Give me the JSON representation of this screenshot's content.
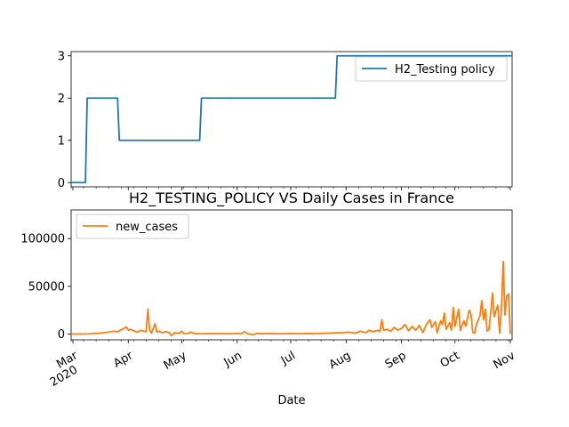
{
  "chart_data": [
    {
      "type": "line",
      "title": "",
      "xlabel": "",
      "ylabel": "",
      "x_range": [
        "2020-02-29",
        "2020-11-02"
      ],
      "ylim": [
        -0.1,
        3.1
      ],
      "yticks": [
        "0",
        "1",
        "2",
        "3"
      ],
      "legend_position": "top-right",
      "grid": false,
      "series": [
        {
          "name": "H2_Testing policy",
          "color": "#1f77b4",
          "points": [
            [
              "2020-02-29",
              0
            ],
            [
              "2020-03-08",
              0
            ],
            [
              "2020-03-09",
              2
            ],
            [
              "2020-03-26",
              2
            ],
            [
              "2020-03-27",
              1
            ],
            [
              "2020-05-11",
              1
            ],
            [
              "2020-05-12",
              2
            ],
            [
              "2020-07-26",
              2
            ],
            [
              "2020-07-27",
              3
            ],
            [
              "2020-11-02",
              3
            ]
          ]
        }
      ]
    },
    {
      "type": "line",
      "title": "H2_TESTING_POLICY VS Daily Cases in France",
      "xlabel": "Date",
      "ylabel": "",
      "x_range": [
        "2020-02-29",
        "2020-11-02"
      ],
      "ylim": [
        -6000,
        130000
      ],
      "yticks": [
        "0",
        "50000",
        "100000"
      ],
      "xticks": [
        {
          "date": "2020-03-01",
          "label": "Mar",
          "sub": "2020"
        },
        {
          "date": "2020-04-01",
          "label": "Apr",
          "sub": ""
        },
        {
          "date": "2020-05-01",
          "label": "May",
          "sub": ""
        },
        {
          "date": "2020-06-01",
          "label": "Jun",
          "sub": ""
        },
        {
          "date": "2020-07-01",
          "label": "Jul",
          "sub": ""
        },
        {
          "date": "2020-08-01",
          "label": "Aug",
          "sub": ""
        },
        {
          "date": "2020-09-01",
          "label": "Sep",
          "sub": ""
        },
        {
          "date": "2020-10-01",
          "label": "Oct",
          "sub": ""
        },
        {
          "date": "2020-11-01",
          "label": "Nov",
          "sub": ""
        }
      ],
      "legend_position": "top-left",
      "grid": false,
      "series": [
        {
          "name": "new_cases",
          "color": "#ff7f0e",
          "points": [
            [
              "2020-02-29",
              0
            ],
            [
              "2020-03-10",
              300
            ],
            [
              "2020-03-15",
              900
            ],
            [
              "2020-03-20",
              1800
            ],
            [
              "2020-03-24",
              3000
            ],
            [
              "2020-03-26",
              2500
            ],
            [
              "2020-03-28",
              4500
            ],
            [
              "2020-03-31",
              7500
            ],
            [
              "2020-04-01",
              4000
            ],
            [
              "2020-04-02",
              5000
            ],
            [
              "2020-04-04",
              3500
            ],
            [
              "2020-04-06",
              2000
            ],
            [
              "2020-04-08",
              4000
            ],
            [
              "2020-04-10",
              3000
            ],
            [
              "2020-04-11",
              2500
            ],
            [
              "2020-04-12",
              26000
            ],
            [
              "2020-04-13",
              4000
            ],
            [
              "2020-04-14",
              1000
            ],
            [
              "2020-04-15",
              6000
            ],
            [
              "2020-04-16",
              11000
            ],
            [
              "2020-04-17",
              2000
            ],
            [
              "2020-04-18",
              3000
            ],
            [
              "2020-04-20",
              1500
            ],
            [
              "2020-04-22",
              2500
            ],
            [
              "2020-04-24",
              1500
            ],
            [
              "2020-04-25",
              -1500
            ],
            [
              "2020-04-27",
              1500
            ],
            [
              "2020-04-29",
              500
            ],
            [
              "2020-05-01",
              3000
            ],
            [
              "2020-05-02",
              600
            ],
            [
              "2020-05-04",
              500
            ],
            [
              "2020-05-06",
              2000
            ],
            [
              "2020-05-08",
              700
            ],
            [
              "2020-05-10",
              200
            ],
            [
              "2020-05-15",
              400
            ],
            [
              "2020-05-20",
              600
            ],
            [
              "2020-05-25",
              300
            ],
            [
              "2020-05-30",
              500
            ],
            [
              "2020-06-01",
              800
            ],
            [
              "2020-06-03",
              200
            ],
            [
              "2020-06-05",
              2500
            ],
            [
              "2020-06-07",
              300
            ],
            [
              "2020-06-10",
              -600
            ],
            [
              "2020-06-12",
              800
            ],
            [
              "2020-06-15",
              400
            ],
            [
              "2020-06-20",
              500
            ],
            [
              "2020-06-25",
              300
            ],
            [
              "2020-07-01",
              600
            ],
            [
              "2020-07-05",
              300
            ],
            [
              "2020-07-10",
              700
            ],
            [
              "2020-07-15",
              500
            ],
            [
              "2020-07-20",
              900
            ],
            [
              "2020-07-25",
              1200
            ],
            [
              "2020-07-30",
              1500
            ],
            [
              "2020-08-03",
              2000
            ],
            [
              "2020-08-06",
              1000
            ],
            [
              "2020-08-09",
              3000
            ],
            [
              "2020-08-12",
              1500
            ],
            [
              "2020-08-14",
              4000
            ],
            [
              "2020-08-16",
              2500
            ],
            [
              "2020-08-19",
              4000
            ],
            [
              "2020-08-20",
              2500
            ],
            [
              "2020-08-21",
              15000
            ],
            [
              "2020-08-22",
              4000
            ],
            [
              "2020-08-24",
              5000
            ],
            [
              "2020-08-26",
              3000
            ],
            [
              "2020-08-28",
              7000
            ],
            [
              "2020-08-30",
              4000
            ],
            [
              "2020-09-01",
              6000
            ],
            [
              "2020-09-03",
              10000
            ],
            [
              "2020-09-05",
              3500
            ],
            [
              "2020-09-07",
              8000
            ],
            [
              "2020-09-09",
              4000
            ],
            [
              "2020-09-11",
              9000
            ],
            [
              "2020-09-13",
              1500
            ],
            [
              "2020-09-15",
              10000
            ],
            [
              "2020-09-17",
              15000
            ],
            [
              "2020-09-18",
              7000
            ],
            [
              "2020-09-20",
              13000
            ],
            [
              "2020-09-21",
              1500
            ],
            [
              "2020-09-23",
              14000
            ],
            [
              "2020-09-24",
              10000
            ],
            [
              "2020-09-25",
              22000
            ],
            [
              "2020-09-26",
              5000
            ],
            [
              "2020-09-28",
              12000
            ],
            [
              "2020-09-29",
              4000
            ],
            [
              "2020-09-30",
              28000
            ],
            [
              "2020-10-01",
              8000
            ],
            [
              "2020-10-03",
              26000
            ],
            [
              "2020-10-04",
              4000
            ],
            [
              "2020-10-06",
              14000
            ],
            [
              "2020-10-07",
              8000
            ],
            [
              "2020-10-09",
              25000
            ],
            [
              "2020-10-10",
              20000
            ],
            [
              "2020-10-11",
              1500
            ],
            [
              "2020-10-12",
              1000
            ],
            [
              "2020-10-13",
              10000
            ],
            [
              "2020-10-15",
              19000
            ],
            [
              "2020-10-16",
              35000
            ],
            [
              "2020-10-17",
              15000
            ],
            [
              "2020-10-18",
              26000
            ],
            [
              "2020-10-19",
              3000
            ],
            [
              "2020-10-20",
              5000
            ],
            [
              "2020-10-21",
              22000
            ],
            [
              "2020-10-22",
              43000
            ],
            [
              "2020-10-23",
              18000
            ],
            [
              "2020-10-24",
              25000
            ],
            [
              "2020-10-25",
              30000
            ],
            [
              "2020-10-26",
              1000
            ],
            [
              "2020-10-27",
              26000
            ],
            [
              "2020-10-28",
              76000
            ],
            [
              "2020-10-29",
              20000
            ],
            [
              "2020-10-30",
              40000
            ],
            [
              "2020-10-31",
              42000
            ],
            [
              "2020-11-01",
              1000
            ],
            [
              "2020-11-02",
              1000
            ]
          ]
        }
      ]
    }
  ]
}
